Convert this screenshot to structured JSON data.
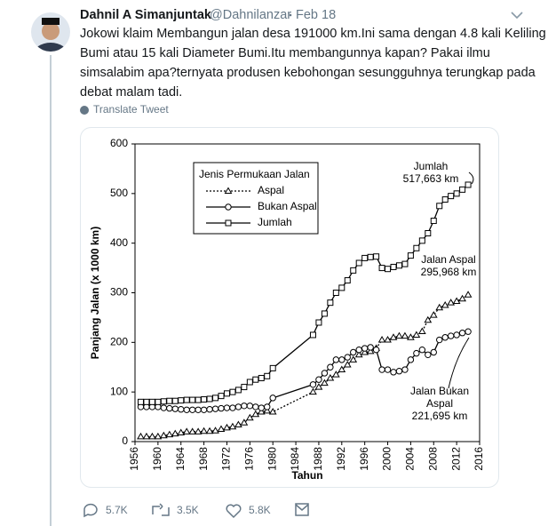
{
  "tweet": {
    "name": "Dahnil A Simanjuntak",
    "handle": "@Dahnilanzar",
    "date": "Feb 18",
    "text_lines": [
      "Jokowi klaim Membangun jalan desa 191000 km.Ini sama dengan 4.8 kali Keliling",
      "Bumi atau 15 kali Diameter Bumi.Itu membangunnya kapan? Pakai ilmu",
      "simsalabim apa?ternyata produsen kebohongan sesungguhnya terungkap pada",
      "debat malam tadi."
    ],
    "translate": "Translate Tweet",
    "replies": "5.7K",
    "retweets": "3.5K",
    "likes": "5.8K"
  },
  "chart_data": {
    "type": "line",
    "x_label": "Tahun",
    "y_label": "Panjang Jalan (x 1000 km)",
    "legend_title": "Jenis Permukaan Jalan",
    "x": [
      1957,
      1958,
      1959,
      1960,
      1961,
      1962,
      1963,
      1964,
      1965,
      1966,
      1967,
      1968,
      1969,
      1970,
      1971,
      1972,
      1973,
      1974,
      1975,
      1976,
      1977,
      1978,
      1979,
      1980,
      1987,
      1988,
      1989,
      1990,
      1991,
      1992,
      1993,
      1994,
      1995,
      1996,
      1997,
      1998,
      1999,
      2000,
      2001,
      2002,
      2003,
      2004,
      2005,
      2006,
      2007,
      2008,
      2009,
      2010,
      2011,
      2012,
      2013,
      2014
    ],
    "series": [
      {
        "name": "Aspal",
        "color": "#000000",
        "marker": "triangle",
        "dash": "dotted",
        "values": [
          10,
          10,
          10,
          10,
          12,
          14,
          16,
          18,
          20,
          20,
          20,
          21,
          21,
          22,
          25,
          28,
          30,
          34,
          38,
          48,
          55,
          60,
          62,
          60,
          100,
          110,
          118,
          128,
          135,
          145,
          155,
          165,
          175,
          180,
          182,
          188,
          205,
          205,
          210,
          213,
          213,
          210,
          215,
          222,
          245,
          255,
          270,
          275,
          280,
          283,
          288,
          295.968
        ]
      },
      {
        "name": "Bukan Aspal",
        "color": "#000000",
        "marker": "circle",
        "dash": "solid",
        "values": [
          70,
          70,
          70,
          70,
          68,
          67,
          66,
          65,
          64,
          64,
          64,
          64,
          65,
          66,
          67,
          68,
          68,
          70,
          72,
          72,
          70,
          68,
          70,
          88,
          115,
          125,
          138,
          150,
          165,
          165,
          170,
          180,
          185,
          188,
          190,
          185,
          145,
          145,
          140,
          142,
          145,
          165,
          178,
          185,
          175,
          180,
          205,
          210,
          213,
          215,
          219,
          221.695
        ]
      },
      {
        "name": "Jumlah",
        "color": "#000000",
        "marker": "square",
        "dash": "solid",
        "values": [
          80,
          80,
          80,
          80,
          81,
          82,
          82,
          83,
          84,
          84,
          84,
          85,
          86,
          88,
          92,
          97,
          100,
          104,
          110,
          120,
          125,
          128,
          132,
          148,
          215,
          240,
          258,
          280,
          300,
          310,
          325,
          345,
          360,
          370,
          372,
          373,
          350,
          348,
          352,
          355,
          358,
          375,
          390,
          405,
          420,
          445,
          475,
          488,
          495,
          500,
          508,
          517.663
        ]
      }
    ],
    "annotations": [
      {
        "lines": [
          "Jumlah",
          "517,663 km"
        ]
      },
      {
        "lines": [
          "Jalan Aspal",
          "295,968 km"
        ]
      },
      {
        "lines": [
          "Jalan Bukan",
          "Aspal",
          "221,695 km"
        ]
      }
    ],
    "xlim": [
      1956,
      2016
    ],
    "xticks": [
      1956,
      1960,
      1964,
      1968,
      1972,
      1976,
      1980,
      1984,
      1988,
      1992,
      1996,
      2000,
      2004,
      2008,
      2012,
      2016
    ],
    "ylim": [
      0,
      600
    ],
    "yticks": [
      0,
      100,
      200,
      300,
      400,
      500,
      600
    ],
    "grid": false
  }
}
